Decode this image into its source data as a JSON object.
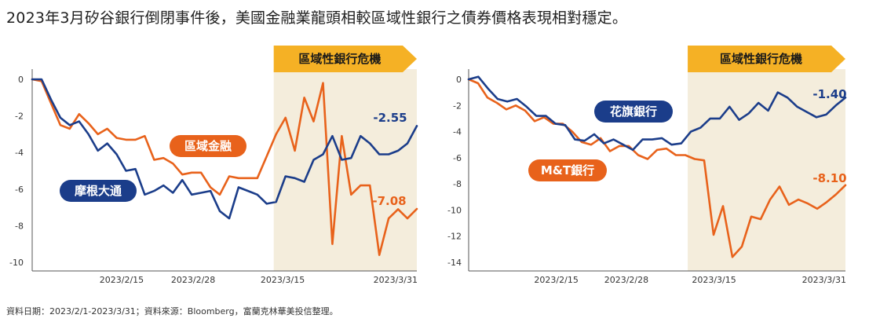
{
  "title": "2023年3月矽谷銀行倒閉事件後，美國金融業龍頭相較區域性銀行之債券價格表現相對穩定。",
  "footnote": "資料日期：2023/2/1-2023/3/31；資料來源：Bloomberg，富蘭克林華美投信整理。",
  "colors": {
    "orange": "#e8621b",
    "navy": "#1b3d8a",
    "shade": "#f4eddc",
    "banner": "#f5b125",
    "axis": "#555555"
  },
  "chart_data": [
    {
      "type": "line",
      "ylim": [
        -10,
        0
      ],
      "yticks": [
        0,
        -2,
        -4,
        -6,
        -8,
        -10
      ],
      "ytick_labels": [
        "0",
        "-2",
        "-4",
        "-6",
        "-8",
        "-10"
      ],
      "xlim": [
        0,
        43
      ],
      "xticks": [
        10,
        18,
        28,
        43
      ],
      "xtick_labels": [
        "2023/2/15",
        "2023/2/28",
        "2023/3/15",
        "2023/3/31"
      ],
      "shade_start": 27,
      "banner_label": "區域性銀行危機",
      "series": [
        {
          "name": "區域金融",
          "color": "orange",
          "end_label": "-7.08",
          "values": [
            0,
            -0.1,
            -1.3,
            -2.5,
            -2.7,
            -1.9,
            -2.4,
            -3.0,
            -2.7,
            -3.2,
            -3.3,
            -3.3,
            -3.1,
            -4.4,
            -4.3,
            -4.6,
            -5.2,
            -5.1,
            -5.1,
            -5.9,
            -6.3,
            -5.3,
            -5.4,
            -5.4,
            -5.4,
            -4.2,
            -3.0,
            -2.1,
            -3.9,
            -1.0,
            -2.3,
            -0.2,
            -9.0,
            -3.1,
            -6.3,
            -5.8,
            -5.8,
            -9.6,
            -7.6,
            -7.1,
            -7.6,
            -7.08
          ]
        },
        {
          "name": "摩根大通",
          "color": "navy",
          "end_label": "-2.55",
          "values": [
            0,
            0,
            -1.1,
            -2.1,
            -2.5,
            -2.3,
            -3.0,
            -3.9,
            -3.5,
            -4.1,
            -5.0,
            -4.9,
            -6.3,
            -6.1,
            -5.8,
            -6.2,
            -5.5,
            -6.3,
            -6.2,
            -6.1,
            -7.2,
            -7.6,
            -5.9,
            -6.1,
            -6.3,
            -6.8,
            -6.7,
            -5.3,
            -5.4,
            -5.6,
            -4.4,
            -4.1,
            -3.1,
            -4.4,
            -4.3,
            -3.1,
            -3.5,
            -4.1,
            -4.1,
            -3.9,
            -3.5,
            -2.55
          ]
        }
      ]
    },
    {
      "type": "line",
      "ylim": [
        -14,
        0
      ],
      "yticks": [
        0,
        -2,
        -4,
        -6,
        -8,
        -10,
        -12,
        -14
      ],
      "ytick_labels": [
        "0",
        "-2",
        "-4",
        "-6",
        "-8",
        "-10",
        "-12",
        "-14"
      ],
      "xlim": [
        0,
        43
      ],
      "xticks": [
        10,
        18,
        28,
        43
      ],
      "xtick_labels": [
        "2023/2/15",
        "2023/2/28",
        "2023/3/15",
        "2023/3/31"
      ],
      "shade_start": 25,
      "banner_label": "區域性銀行危機",
      "series": [
        {
          "name": "M&T銀行",
          "color": "orange",
          "end_label": "-8.10",
          "values": [
            0,
            -0.3,
            -1.4,
            -1.8,
            -2.3,
            -2.0,
            -2.4,
            -3.2,
            -2.9,
            -3.4,
            -3.4,
            -4.0,
            -4.8,
            -5.0,
            -4.5,
            -5.5,
            -5.1,
            -5.1,
            -5.8,
            -6.1,
            -5.4,
            -5.3,
            -5.8,
            -5.8,
            -6.1,
            -6.2,
            -11.9,
            -9.7,
            -13.6,
            -12.8,
            -10.5,
            -10.7,
            -9.2,
            -8.2,
            -9.6,
            -9.2,
            -9.5,
            -9.9,
            -9.4,
            -8.8,
            -8.1
          ]
        },
        {
          "name": "花旗銀行",
          "color": "navy",
          "end_label": "-1.40",
          "values": [
            0,
            0.2,
            -0.7,
            -1.5,
            -1.7,
            -1.5,
            -2.1,
            -2.8,
            -2.8,
            -3.4,
            -3.5,
            -4.6,
            -4.7,
            -4.2,
            -4.9,
            -4.6,
            -5.0,
            -5.4,
            -4.6,
            -4.6,
            -4.5,
            -5.0,
            -4.9,
            -4.0,
            -3.7,
            -3.0,
            -3.0,
            -2.1,
            -3.1,
            -2.6,
            -1.8,
            -2.4,
            -1.0,
            -1.4,
            -2.1,
            -2.5,
            -2.9,
            -2.7,
            -2.0,
            -1.4
          ]
        }
      ]
    }
  ]
}
